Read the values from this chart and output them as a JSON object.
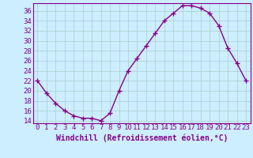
{
  "x": [
    0,
    1,
    2,
    3,
    4,
    5,
    6,
    7,
    8,
    9,
    10,
    11,
    12,
    13,
    14,
    15,
    16,
    17,
    18,
    19,
    20,
    21,
    22,
    23
  ],
  "y": [
    22,
    19.5,
    17.5,
    16,
    15,
    14.5,
    14.5,
    14,
    15.5,
    20,
    24,
    26.5,
    29,
    31.5,
    34,
    35.5,
    37,
    37,
    36.5,
    35.5,
    33,
    28.5,
    25.5,
    22
  ],
  "line_color": "#880088",
  "marker": "+",
  "bg_color": "#cceeff",
  "grid_color": "#aacccc",
  "xlabel": "Windchill (Refroidissement éolien,°C)",
  "ylabel": "",
  "ylim": [
    13.5,
    37.5
  ],
  "xlim": [
    -0.5,
    23.5
  ],
  "yticks": [
    14,
    16,
    18,
    20,
    22,
    24,
    26,
    28,
    30,
    32,
    34,
    36
  ],
  "xticks": [
    0,
    1,
    2,
    3,
    4,
    5,
    6,
    7,
    8,
    9,
    10,
    11,
    12,
    13,
    14,
    15,
    16,
    17,
    18,
    19,
    20,
    21,
    22,
    23
  ],
  "font_color": "#880088",
  "font_family": "monospace",
  "font_size_axis": 6.5,
  "font_size_label": 7,
  "line_width": 1.0,
  "marker_size": 4,
  "spine_color": "#880088"
}
